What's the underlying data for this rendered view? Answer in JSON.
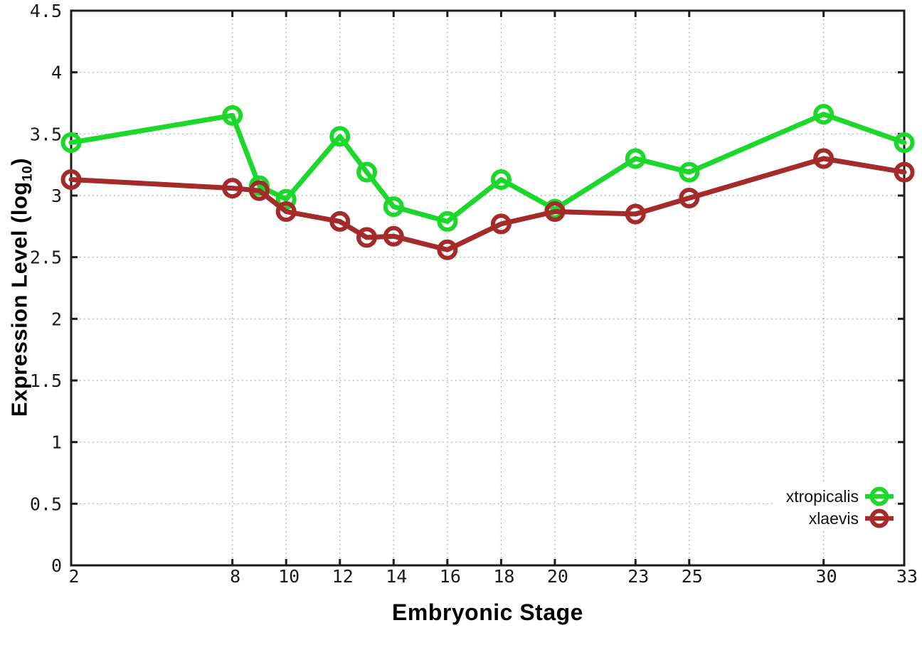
{
  "labels": {
    "x_title": "Embryonic Stage",
    "y_title_pre": "Expression Level (log",
    "y_title_sub": "10",
    "y_title_post": ")"
  },
  "chart_data": {
    "type": "line",
    "title": "",
    "xlabel": "Embryonic Stage",
    "ylabel": "Expression Level (log10)",
    "xlim": [
      2,
      33
    ],
    "ylim": [
      0,
      4.5
    ],
    "grid": true,
    "grid_style": "dotted",
    "legend_position": "inside-bottom-right",
    "marker": "open-circle",
    "background_color": "#ffffff",
    "border_color": "#1c1c1c",
    "x": [
      2,
      8,
      9,
      10,
      12,
      13,
      14,
      16,
      18,
      20,
      23,
      25,
      30,
      33
    ],
    "x_ticks": {
      "values": [
        2,
        8,
        10,
        12,
        14,
        16,
        18,
        20,
        23,
        25,
        30,
        33
      ],
      "labels": [
        "2",
        "8",
        "10",
        "12",
        "14",
        "16",
        "18",
        "20",
        "23",
        "25",
        "30",
        "33"
      ]
    },
    "y_ticks": {
      "values": [
        0,
        0.5,
        1,
        1.5,
        2,
        2.5,
        3,
        3.5,
        4,
        4.5
      ],
      "labels": [
        "0",
        "0.5",
        "1",
        "1.5",
        "2",
        "2.5",
        "3",
        "3.5",
        "4",
        "4.5"
      ]
    },
    "series": [
      {
        "name": "xtropicalis",
        "color": "#1bd82b",
        "values": [
          3.43,
          3.65,
          3.08,
          2.97,
          3.48,
          3.19,
          2.91,
          2.79,
          3.13,
          2.89,
          3.3,
          3.19,
          3.66,
          3.43
        ]
      },
      {
        "name": "xlaevis",
        "color": "#a52a2a",
        "values": [
          3.13,
          3.06,
          3.04,
          2.87,
          2.79,
          2.66,
          2.67,
          2.56,
          2.77,
          2.87,
          2.85,
          2.98,
          3.3,
          3.19
        ]
      }
    ]
  }
}
